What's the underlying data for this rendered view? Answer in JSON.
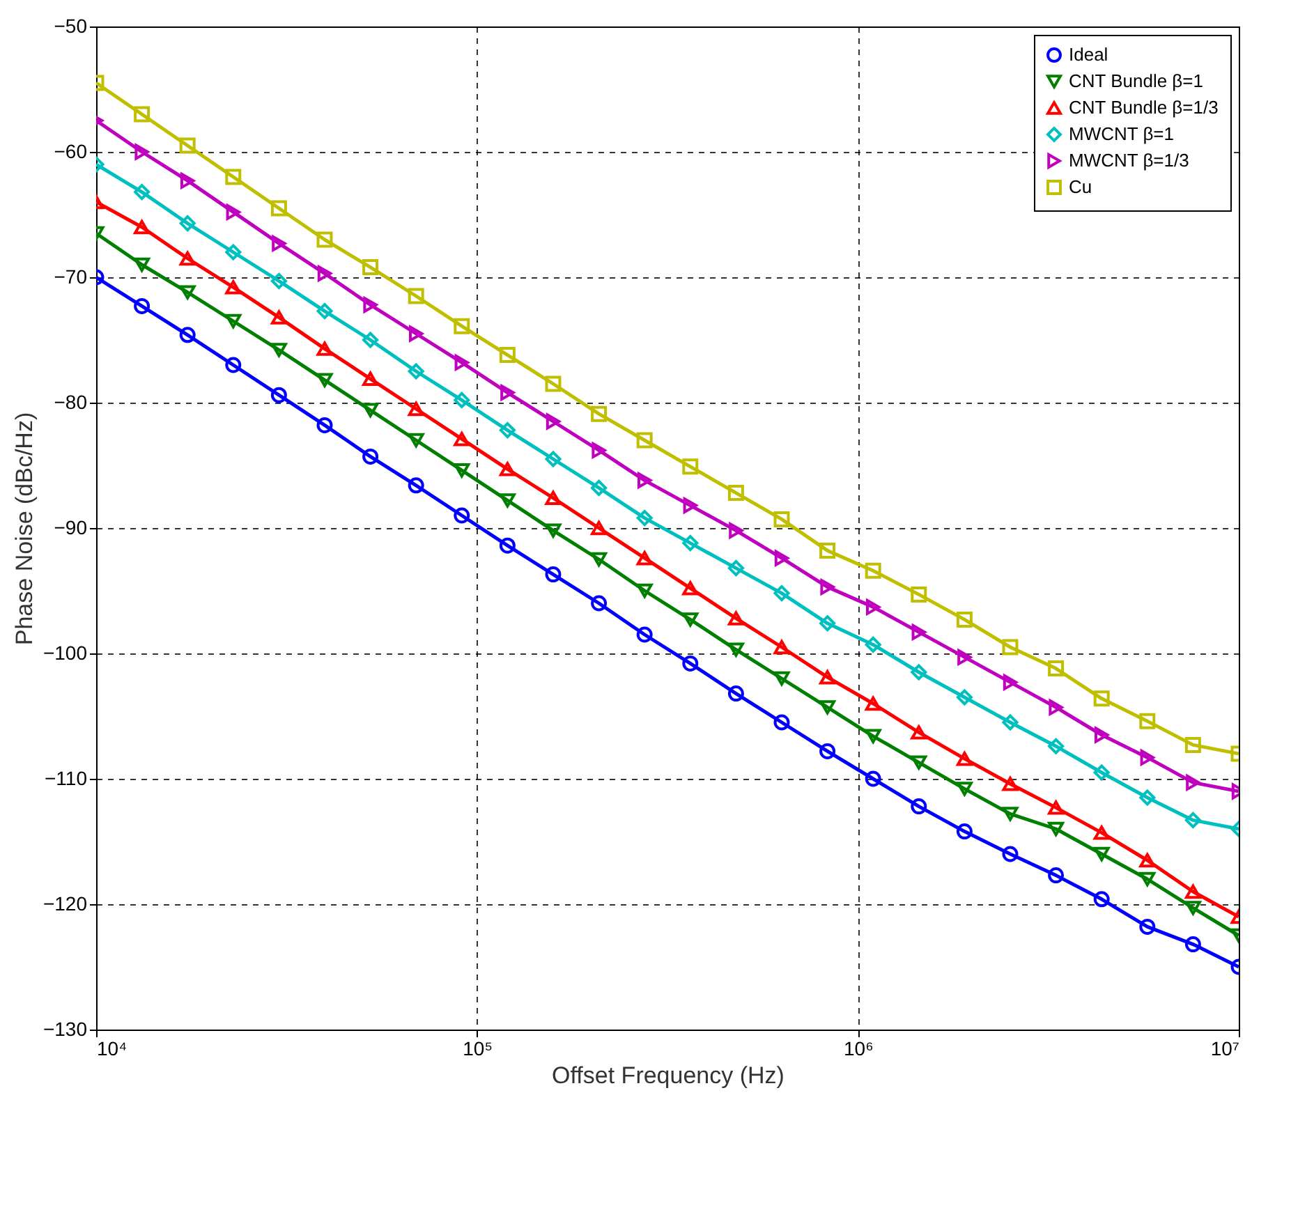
{
  "chart_data": {
    "type": "line",
    "xlabel": "Offset Frequency (Hz)",
    "ylabel": "Phase Noise (dBc/Hz)",
    "x": [
      10000,
      13183,
      17378,
      22909,
      30200,
      39811,
      52481,
      69183,
      91201,
      120226,
      158489,
      208930,
      275423,
      363078,
      478630,
      630957,
      831764,
      1096478,
      1445440,
      1905461,
      2511886,
      3311311,
      4365158,
      5754399,
      7585776,
      10000000
    ],
    "series": [
      {
        "name": "Ideal",
        "color": "#0000ff",
        "marker": "circle",
        "values": [
          -70,
          -72.3,
          -74.6,
          -77,
          -79.4,
          -81.8,
          -84.3,
          -86.6,
          -89,
          -91.4,
          -93.7,
          -96,
          -98.5,
          -100.8,
          -103.2,
          -105.5,
          -107.8,
          -110,
          -112.2,
          -114.2,
          -116,
          -117.7,
          -119.6,
          -121.8,
          -123.2,
          -125
        ]
      },
      {
        "name": "CNT Bundle β=1",
        "color": "#007f00",
        "marker": "triangle-down",
        "values": [
          -66.5,
          -69,
          -71.2,
          -73.5,
          -75.8,
          -78.2,
          -80.6,
          -83,
          -85.4,
          -87.8,
          -90.2,
          -92.5,
          -95,
          -97.3,
          -99.7,
          -102,
          -104.3,
          -106.6,
          -108.7,
          -110.8,
          -112.8,
          -114,
          -116,
          -118,
          -120.3,
          -122.5
        ]
      },
      {
        "name": "CNT Bundle β=1/3",
        "color": "#ff0000",
        "marker": "triangle",
        "values": [
          -64,
          -66,
          -68.5,
          -70.8,
          -73.2,
          -75.7,
          -78.1,
          -80.5,
          -82.9,
          -85.3,
          -87.6,
          -90,
          -92.4,
          -94.8,
          -97.2,
          -99.5,
          -101.9,
          -104,
          -106.3,
          -108.4,
          -110.4,
          -112.3,
          -114.3,
          -116.5,
          -119,
          -121
        ]
      },
      {
        "name": "MWCNT β=1",
        "color": "#00bfbf",
        "marker": "diamond",
        "values": [
          -61,
          -63.2,
          -65.7,
          -68,
          -70.3,
          -72.7,
          -75,
          -77.5,
          -79.8,
          -82.2,
          -84.5,
          -86.8,
          -89.2,
          -91.2,
          -93.2,
          -95.2,
          -97.6,
          -99.3,
          -101.5,
          -103.5,
          -105.5,
          -107.4,
          -109.5,
          -111.5,
          -113.3,
          -114
        ]
      },
      {
        "name": "MWCNT β=1/3",
        "color": "#bf00bf",
        "marker": "triangle-right",
        "values": [
          -57.5,
          -60,
          -62.3,
          -64.8,
          -67.3,
          -69.7,
          -72.2,
          -74.5,
          -76.8,
          -79.2,
          -81.5,
          -83.8,
          -86.2,
          -88.2,
          -90.2,
          -92.4,
          -94.7,
          -96.3,
          -98.3,
          -100.3,
          -102.3,
          -104.3,
          -106.5,
          -108.3,
          -110.3,
          -111
        ]
      },
      {
        "name": "Cu",
        "color": "#bfbf00",
        "marker": "square",
        "values": [
          -54.5,
          -57,
          -59.5,
          -62,
          -64.5,
          -67,
          -69.2,
          -71.5,
          -73.9,
          -76.2,
          -78.5,
          -80.9,
          -83,
          -85.1,
          -87.2,
          -89.3,
          -91.8,
          -93.4,
          -95.3,
          -97.3,
          -99.5,
          -101.2,
          -103.6,
          -105.4,
          -107.3,
          -108
        ]
      }
    ],
    "xlim": [
      10000,
      10000000
    ],
    "xticks": [
      {
        "value": 10000,
        "label": "10⁴"
      },
      {
        "value": 100000,
        "label": "10⁵"
      },
      {
        "value": 1000000,
        "label": "10⁶"
      },
      {
        "value": 10000000,
        "label": "10⁷"
      }
    ],
    "ylim": [
      -130,
      -50
    ],
    "yticks": [
      -130,
      -120,
      -110,
      -100,
      -90,
      -80,
      -70,
      -60,
      -50
    ],
    "log": "x",
    "grid": true,
    "legend": "top right",
    "line_style": "solid"
  }
}
